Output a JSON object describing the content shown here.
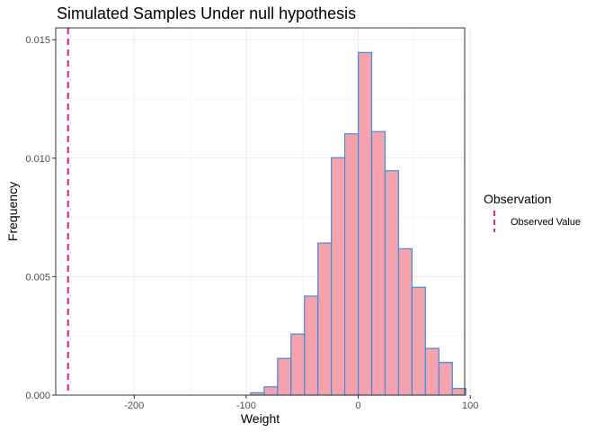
{
  "chart_data": {
    "type": "bar",
    "title": "Simulated Samples Under null hypothesis",
    "xlabel": "Weight",
    "ylabel": "Frequency",
    "xlim": [
      -270,
      95
    ],
    "ylim": [
      0,
      0.0155
    ],
    "x_ticks": [
      -200,
      -100,
      0,
      100
    ],
    "x_tick_labels": [
      "-200",
      "-100",
      "0",
      "100"
    ],
    "y_ticks": [
      0,
      0.005,
      0.01,
      0.015
    ],
    "y_tick_labels": [
      "0.000",
      "0.005",
      "0.010",
      "0.015"
    ],
    "grid": true,
    "bin_width": 12,
    "bins_left": [
      -264,
      -252,
      -240,
      -228,
      -216,
      -204,
      -192,
      -180,
      -168,
      -156,
      -144,
      -132,
      -120,
      -108,
      -96,
      -84,
      -72,
      -60,
      -48,
      -36,
      -24,
      -12,
      0,
      12,
      24,
      36,
      48,
      60,
      72,
      84
    ],
    "values": [
      0,
      0,
      0,
      0,
      0,
      0,
      0,
      0,
      0,
      0,
      0,
      0,
      0,
      0,
      0.0001,
      0.00035,
      0.00155,
      0.00258,
      0.00418,
      0.00642,
      0.01002,
      0.01103,
      0.01446,
      0.01112,
      0.00947,
      0.00618,
      0.00455,
      0.00197,
      0.00138,
      0.00028
    ],
    "bar_fill": "#f4a3ad",
    "bar_outline": "#3c8ee0",
    "observed_value": -259,
    "observed_color": "#e0288a",
    "legend": {
      "title": "Observation",
      "entries": [
        "Observed Value"
      ],
      "position": "right"
    }
  }
}
